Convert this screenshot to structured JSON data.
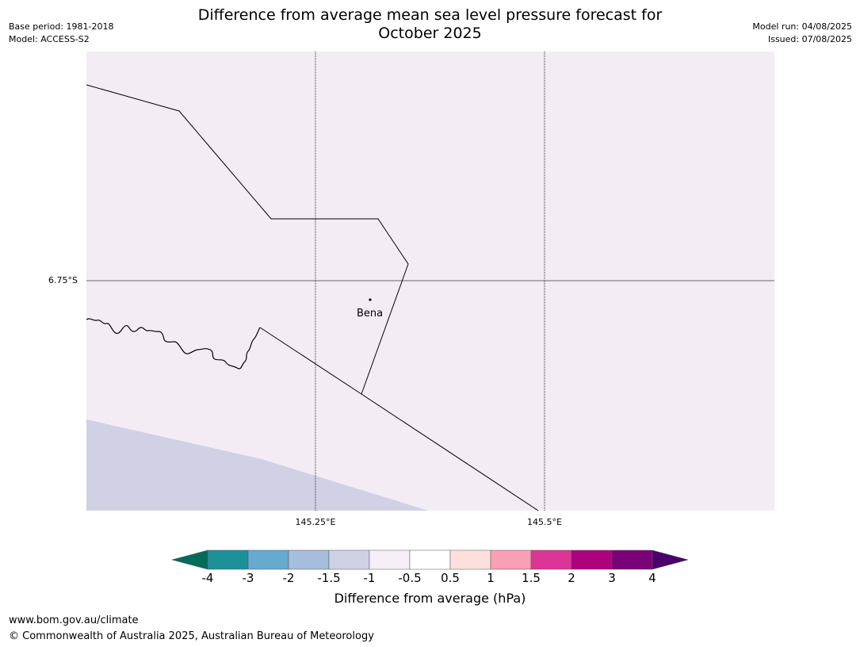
{
  "title_line1": "Difference from average mean sea level pressure forecast for",
  "title_line2": "October 2025",
  "meta_left": {
    "base_period": "Base period: 1981-2018",
    "model": "Model: ACCESS-S2"
  },
  "meta_right": {
    "model_run": "Model run: 04/08/2025",
    "issued": "Issued: 07/08/2025"
  },
  "map": {
    "place_label": "Bena",
    "lat_label": "6.75°S",
    "lon_labels": [
      "145.25°E",
      "145.5°E"
    ],
    "colors": {
      "background": "#f4ecf5",
      "lower_band": "#d0d1e5",
      "line": "#000000"
    }
  },
  "colorbar": {
    "label": "Difference from average (hPa)",
    "ticks": [
      "-4",
      "-3",
      "-2",
      "-1.5",
      "-1",
      "-0.5",
      "0.5",
      "1",
      "1.5",
      "2",
      "3",
      "4"
    ],
    "colors": [
      "#016c59",
      "#1c9099",
      "#67a9cf",
      "#a6bddb",
      "#d0d1e6",
      "#f6eff7",
      "#ffffff",
      "#fde0dd",
      "#fa9fb5",
      "#dd3497",
      "#ae017e",
      "#7a0177",
      "#49006a"
    ]
  },
  "footer": {
    "url": "www.bom.gov.au/climate",
    "copyright": "© Commonwealth of Australia 2025, Australian Bureau of Meteorology"
  }
}
